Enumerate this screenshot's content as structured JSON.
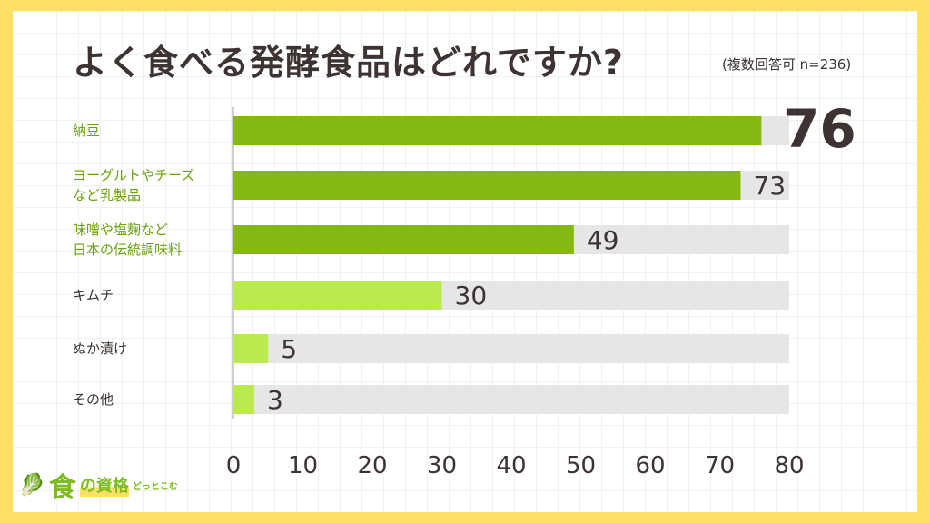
{
  "chart_data": {
    "type": "bar",
    "orientation": "horizontal",
    "title": "よく食べる発酵食品はどれですか?",
    "subtitle": "(複数回答可 n=236)",
    "categories": [
      "納豆",
      "ヨーグルトやチーズ\nなど乳製品",
      "味噌や塩麹など\n日本の伝統調味料",
      "キムチ",
      "ぬか漬け",
      "その他"
    ],
    "values": [
      76,
      73,
      49,
      30,
      5,
      3
    ],
    "xlim": [
      0,
      80
    ],
    "xticks": [
      "0",
      "10",
      "20",
      "30",
      "40",
      "50",
      "60",
      "70",
      "80"
    ],
    "grid": false,
    "colors": {
      "top": "#86B812",
      "rest": "#BBEA4E",
      "track": "#E6E6E6",
      "text": "#3D3333"
    }
  },
  "logo": {
    "mark": "食",
    "text": "の資格",
    "suffix": "どっとこむ"
  }
}
